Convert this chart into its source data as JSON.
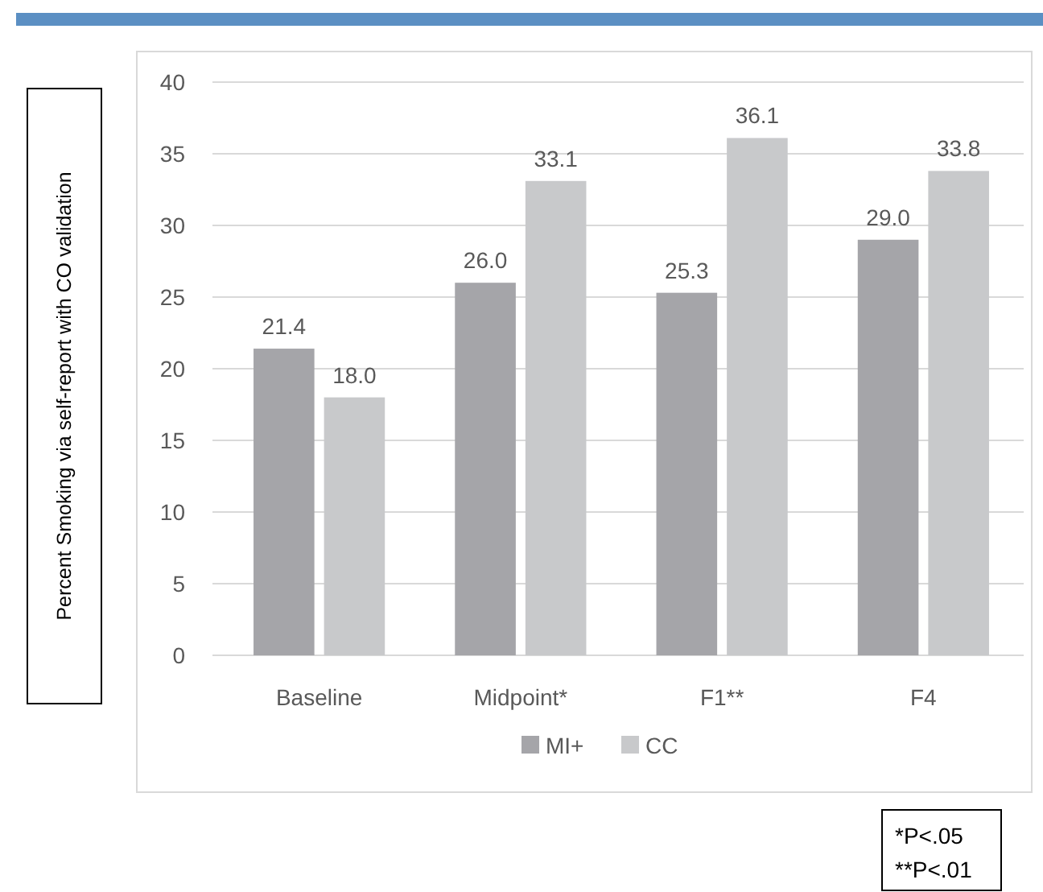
{
  "chart_data": {
    "type": "bar",
    "ylabel": "Percent Smoking via self-report with CO validation",
    "categories": [
      "Baseline",
      "Midpoint*",
      "F1**",
      "F4"
    ],
    "series": [
      {
        "name": "MI+",
        "color": "#a5a5a9",
        "values": [
          21.4,
          26.0,
          25.3,
          29.0
        ],
        "value_labels": [
          "21.4",
          "26.0",
          "25.3",
          "29.0"
        ]
      },
      {
        "name": "CC",
        "color": "#c8c9cb",
        "values": [
          18.0,
          33.1,
          36.1,
          33.8
        ],
        "value_labels": [
          "18.0",
          "33.1",
          "36.1",
          "33.8"
        ]
      }
    ],
    "ylim": [
      0,
      40
    ],
    "yticks": [
      0,
      5,
      10,
      15,
      20,
      25,
      30,
      35,
      40
    ],
    "grid": "y",
    "legend": "bottom",
    "annotations": [
      "*P<.05",
      "**P<.01"
    ]
  }
}
